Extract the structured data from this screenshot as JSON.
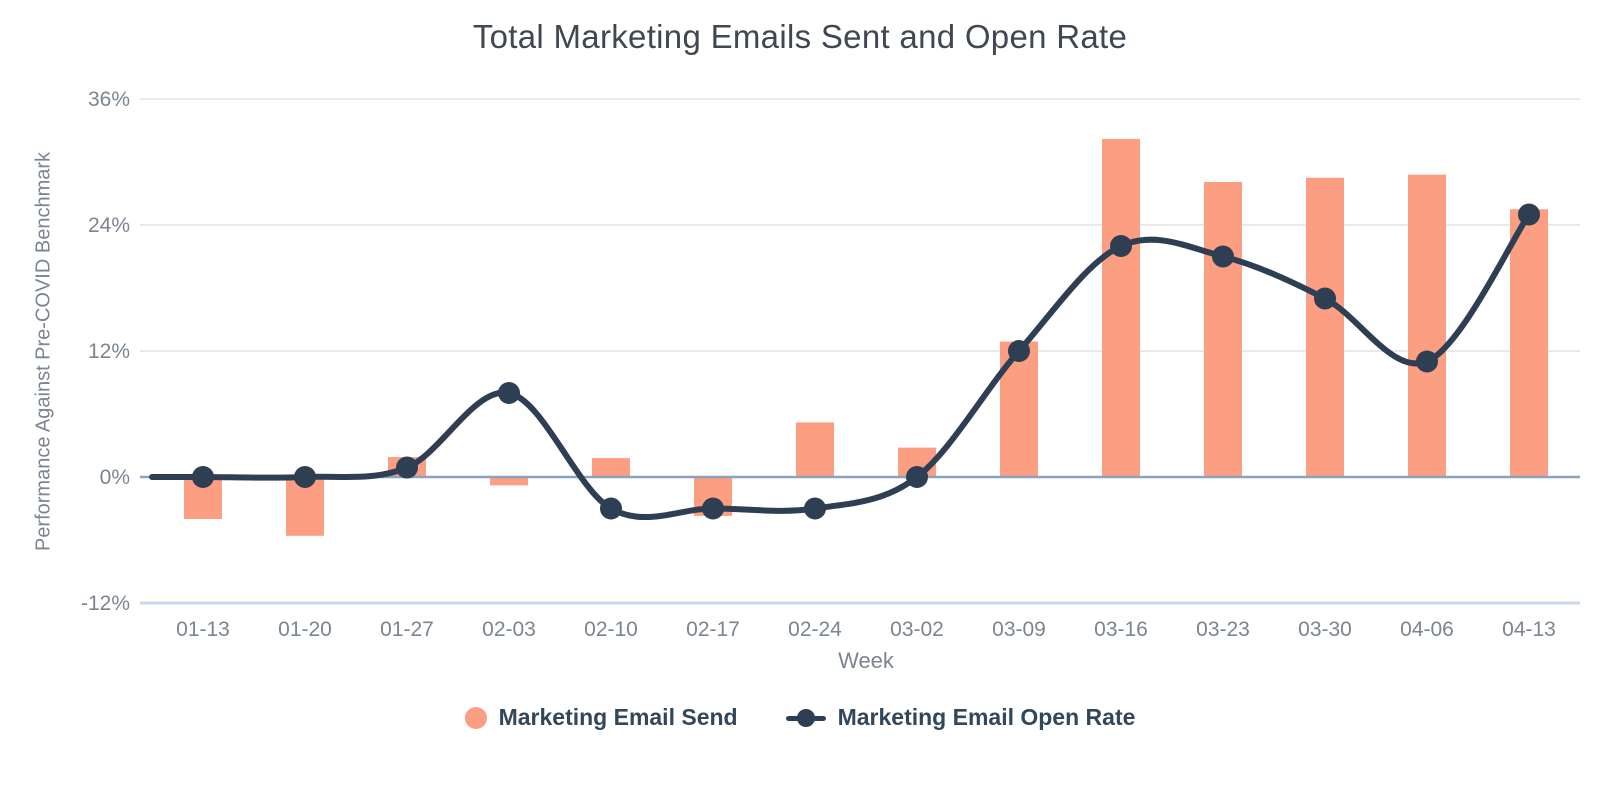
{
  "chart_data": {
    "type": "bar+line",
    "title": "Total Marketing Emails Sent and Open Rate",
    "xlabel": "Week",
    "ylabel": "Performance Against Pre-COVID Benchmark",
    "categories": [
      "01-13",
      "01-20",
      "01-27",
      "02-03",
      "02-10",
      "02-17",
      "02-24",
      "03-02",
      "03-09",
      "03-16",
      "03-23",
      "03-30",
      "04-06",
      "04-13"
    ],
    "series": [
      {
        "name": "Marketing Email Send",
        "type": "bar",
        "color": "#FC9E82",
        "unit": "%",
        "values": [
          -4,
          -5.6,
          1.9,
          -0.8,
          1.8,
          -3.7,
          5.2,
          2.8,
          12.9,
          32.2,
          28.1,
          28.5,
          28.8,
          25.5
        ]
      },
      {
        "name": "Marketing Email Open Rate",
        "type": "line",
        "color": "#2E3F53",
        "unit": "%",
        "values": [
          0,
          0,
          0.9,
          8,
          -3,
          -3,
          -3,
          0,
          12,
          22,
          21,
          17,
          11,
          25
        ]
      }
    ],
    "y_ticks": [
      {
        "label": "36%",
        "value": 36
      },
      {
        "label": "24%",
        "value": 24
      },
      {
        "label": "12%",
        "value": 12
      },
      {
        "label": "0%",
        "value": 0
      },
      {
        "label": "-12%",
        "value": -12
      }
    ],
    "ylim": [
      -12,
      36
    ],
    "grid": true,
    "legend_position": "bottom",
    "colors": {
      "grid_line": "#E9E9E9",
      "zero_line": "#8AA1BF",
      "axis_bottom_line": "#CBD6EC",
      "tick_text": "#7B858F",
      "axis_title_text": "#7B858F",
      "legend_text": "#33475B",
      "title_text": "#3E4752"
    }
  }
}
